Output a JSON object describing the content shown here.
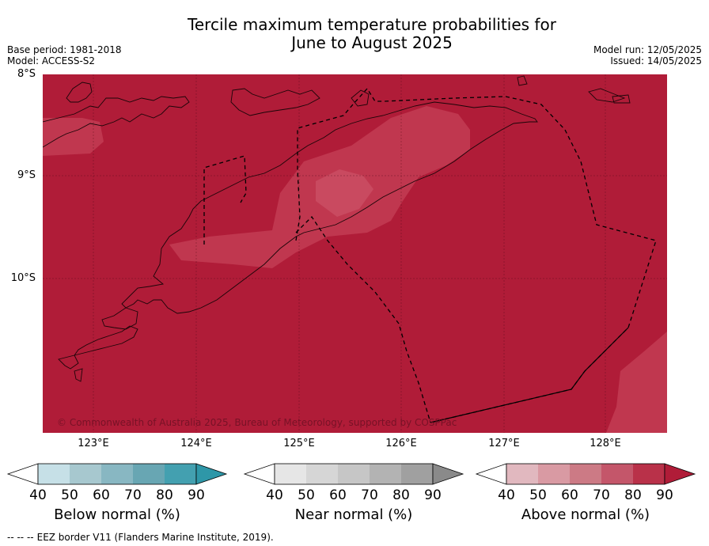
{
  "header": {
    "title_line1": "Tercile maximum temperature probabilities for",
    "title_line2": "June to August 2025",
    "base_period": "Base period: 1981-2018",
    "model": "Model: ACCESS-S2",
    "model_run": "Model run: 12/05/2025",
    "issued": "Issued: 14/05/2025"
  },
  "map": {
    "lat_labels": [
      "8°S",
      "9°S",
      "10°S"
    ],
    "lon_labels": [
      "123°E",
      "124°E",
      "125°E",
      "126°E",
      "127°E",
      "128°E"
    ],
    "copyright": "© Commonwealth of Australia 2025, Bureau of Meteorology, supported by COSPPac",
    "background_color": "#b01c38",
    "lighter_region_color": "#c0374f"
  },
  "legend": {
    "below": {
      "title": "Below normal (%)",
      "ticks": [
        "40",
        "50",
        "60",
        "70",
        "80",
        "90"
      ],
      "colors": [
        "#ffffff",
        "#c6e0e7",
        "#a7c8cf",
        "#88b7c2",
        "#68a6b3",
        "#43a0b0",
        "#2e97a8"
      ]
    },
    "near": {
      "title": "Near normal (%)",
      "ticks": [
        "40",
        "50",
        "60",
        "70",
        "80",
        "90"
      ],
      "colors": [
        "#ffffff",
        "#e6e6e6",
        "#d6d6d6",
        "#c6c6c6",
        "#b3b3b3",
        "#a0a0a0",
        "#8a8a8a"
      ]
    },
    "above": {
      "title": "Above normal (%)",
      "ticks": [
        "40",
        "50",
        "60",
        "70",
        "80",
        "90"
      ],
      "colors": [
        "#ffffff",
        "#e1b8bf",
        "#d99aa3",
        "#cc7a85",
        "#c4566a",
        "#b93149",
        "#b01c38"
      ]
    }
  },
  "footer": {
    "symbol": "--  --  --",
    "text": "EEZ border V11 (Flanders Marine Institute, 2019)."
  }
}
